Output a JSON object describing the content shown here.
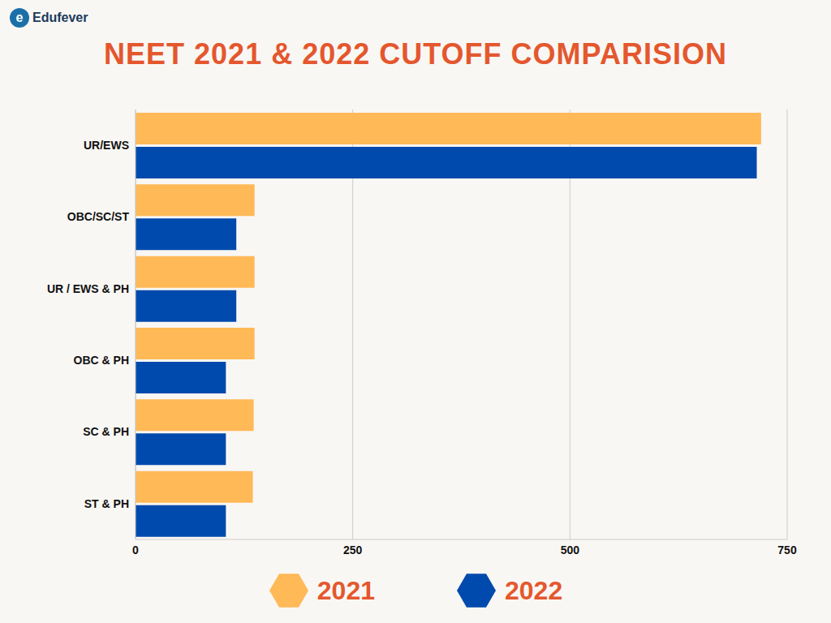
{
  "chart_data": {
    "type": "bar",
    "title": "NEET 2021 & 2022 CUTOFF COMPARISION",
    "annotations": [
      "Edufever"
    ],
    "orientation": "horizontal",
    "categories": [
      "UR/EWS",
      "OBC/SC/ST",
      "UR / EWS & PH",
      "OBC & PH",
      "SC & PH",
      "ST & PH"
    ],
    "series": [
      {
        "name": "2021",
        "color": "#ffb957",
        "values": [
          720,
          137,
          137,
          137,
          136,
          135
        ]
      },
      {
        "name": "2022",
        "color": "#004aad",
        "values": [
          715,
          116,
          116,
          104,
          104,
          104
        ]
      }
    ],
    "xlim": [
      0,
      750
    ],
    "xticks": [
      0,
      250,
      500,
      750
    ],
    "grid": true,
    "legend": "bottom"
  }
}
